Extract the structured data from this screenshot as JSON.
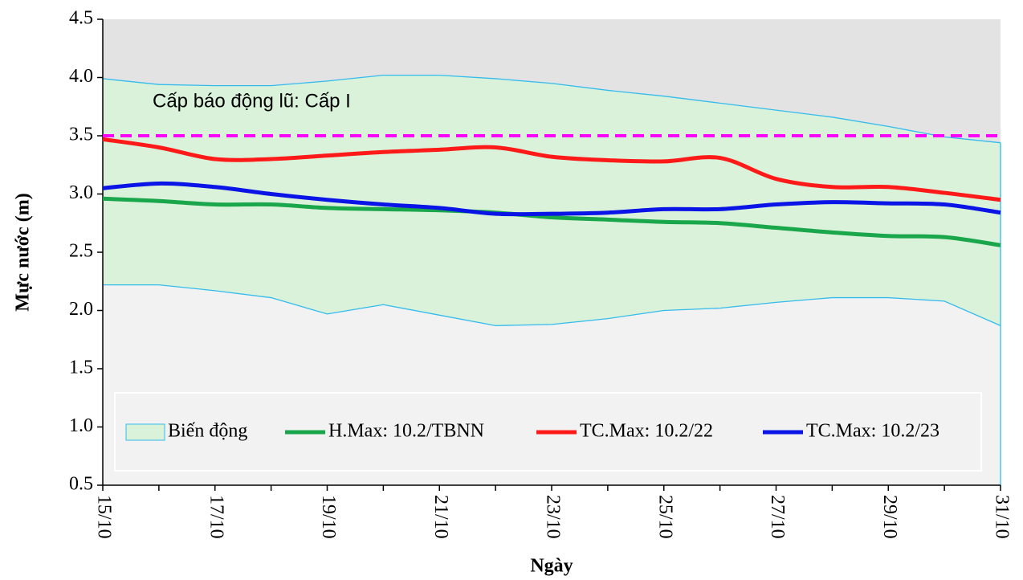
{
  "chart_data": {
    "type": "line",
    "x_label": "Ngày",
    "y_label": "Mực nước (m)",
    "annotation": "Cấp báo động lũ: Cấp I",
    "alarm_level": {
      "value": 3.5,
      "color": "#ff00ff"
    },
    "categories": [
      "15/10",
      null,
      "17/10",
      null,
      "19/10",
      null,
      "21/10",
      null,
      "23/10",
      null,
      "25/10",
      null,
      "27/10",
      null,
      "29/10",
      null,
      "31/10"
    ],
    "band": {
      "name": "Biến động",
      "color": "#d9f2d9",
      "edge_color": "#33bbee",
      "high": [
        3.99,
        3.94,
        3.93,
        3.93,
        3.97,
        4.02,
        4.02,
        3.99,
        3.95,
        3.89,
        3.84,
        3.78,
        3.72,
        3.66,
        3.58,
        3.49,
        3.44
      ],
      "low": [
        2.22,
        2.22,
        2.17,
        2.11,
        1.97,
        2.05,
        1.96,
        1.87,
        1.88,
        1.93,
        2.0,
        2.02,
        2.07,
        2.11,
        2.11,
        2.08,
        1.87
      ]
    },
    "series": [
      {
        "name": "H.Max: 10.2/TBNN",
        "color": "#1aa64a",
        "values": [
          2.96,
          2.94,
          2.91,
          2.91,
          2.88,
          2.87,
          2.86,
          2.84,
          2.8,
          2.78,
          2.76,
          2.75,
          2.71,
          2.67,
          2.64,
          2.63,
          2.56
        ]
      },
      {
        "name": "TC.Max: 10.2/22",
        "color": "#ff1a1a",
        "values": [
          3.47,
          3.4,
          3.3,
          3.3,
          3.33,
          3.36,
          3.38,
          3.4,
          3.32,
          3.29,
          3.28,
          3.31,
          3.13,
          3.06,
          3.06,
          3.01,
          2.95
        ]
      },
      {
        "name": "TC.Max: 10.2/23",
        "color": "#0a14e6",
        "values": [
          3.05,
          3.09,
          3.06,
          3.0,
          2.95,
          2.91,
          2.88,
          2.83,
          2.83,
          2.84,
          2.87,
          2.87,
          2.91,
          2.93,
          2.92,
          2.91,
          2.84
        ]
      }
    ],
    "ylim": [
      0.5,
      4.5
    ],
    "yticks": [
      0.5,
      {
        "value": 1,
        "label": "1.0"
      },
      1.5,
      {
        "value": 2,
        "label": "2.0"
      },
      2.5,
      {
        "value": 3,
        "label": "3.0"
      },
      3.5,
      {
        "value": 4,
        "label": "4.0"
      },
      4.5
    ]
  }
}
